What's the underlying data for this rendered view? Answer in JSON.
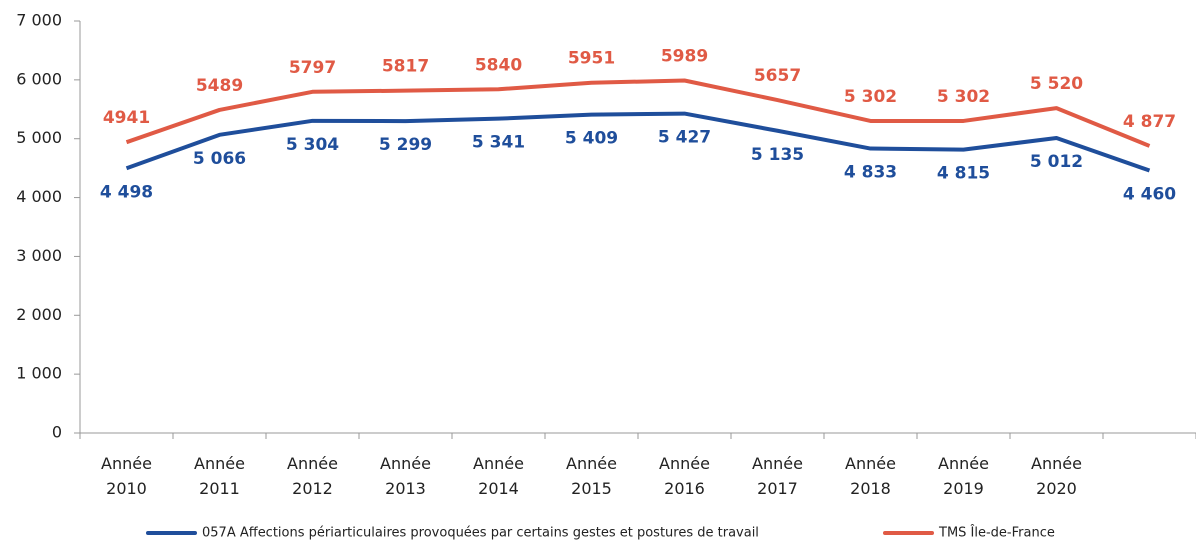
{
  "chart_data": {
    "type": "line",
    "categories": [
      "Année 2010",
      "Année 2011",
      "Année 2012",
      "Année 2013",
      "Année 2014",
      "Année 2015",
      "Année 2016",
      "Année 2017",
      "Année 2018",
      "Année 2019",
      "Année 2020",
      null
    ],
    "series": [
      {
        "name": "057A Affections périarticulaires provoquées par certains gestes et postures de travail",
        "color": "#1f4e9b",
        "values": [
          4498,
          5066,
          5304,
          5299,
          5341,
          5409,
          5427,
          5135,
          4833,
          4815,
          5012,
          4460
        ],
        "value_labels": [
          "4 498",
          "5 066",
          "5 304",
          "5 299",
          "5 341",
          "5 409",
          "5 427",
          "5 135",
          "4 833",
          "4 815",
          "5 012",
          "4 460"
        ]
      },
      {
        "name": "TMS Île-de-France",
        "color": "#e05a45",
        "values": [
          4941,
          5489,
          5797,
          5817,
          5840,
          5951,
          5989,
          5657,
          5302,
          5302,
          5520,
          4877
        ],
        "value_labels": [
          "4941",
          "5489",
          "5797",
          "5817",
          "5840",
          "5951",
          "5989",
          "5657",
          "5 302",
          "5 302",
          "5 520",
          "4 877"
        ]
      }
    ],
    "ylim": [
      0,
      7000
    ],
    "yticks": [
      0,
      {
        "value": 1000,
        "label": "1 000"
      },
      {
        "value": 2000,
        "label": "2 000"
      },
      {
        "value": 3000,
        "label": "3 000"
      },
      {
        "value": 4000,
        "label": "4 000"
      },
      {
        "value": 5000,
        "label": "5 000"
      },
      {
        "value": 6000,
        "label": "6 000"
      },
      {
        "value": 7000,
        "label": "7 000"
      }
    ],
    "grid": false
  }
}
